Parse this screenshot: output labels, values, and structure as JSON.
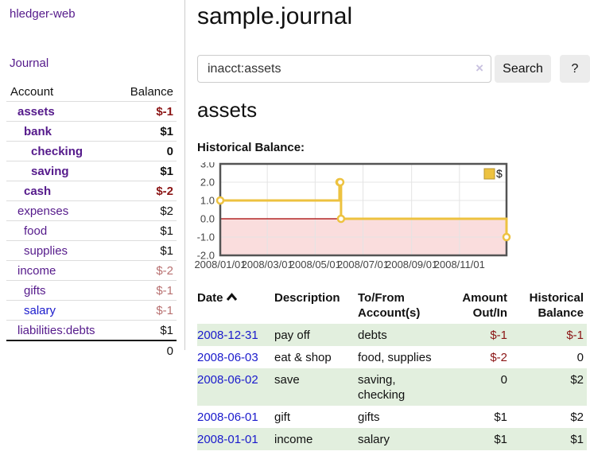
{
  "colors": {
    "link_purple": "#551a8b",
    "link_blue": "#1a1acc",
    "neg_strong": "#8b1515",
    "neg_soft": "#b87070",
    "row_green": "#e2efde",
    "button_bg": "#ececec",
    "divider": "#cccccc"
  },
  "app": {
    "brand": "hledger-web",
    "nav_journal": "Journal"
  },
  "sidebar": {
    "table": {
      "headers": {
        "account": "Account",
        "balance": "Balance"
      }
    },
    "accounts": [
      {
        "name": "assets",
        "depth": 1,
        "bold": true,
        "tone": "neg",
        "balance": "$-1"
      },
      {
        "name": "bank",
        "depth": 2,
        "bold": true,
        "tone": "pos",
        "balance": "$1"
      },
      {
        "name": "checking",
        "depth": 3,
        "bold": true,
        "tone": "pos",
        "balance": "0"
      },
      {
        "name": "saving",
        "depth": 3,
        "bold": true,
        "tone": "pos",
        "balance": "$1"
      },
      {
        "name": "cash",
        "depth": 2,
        "bold": true,
        "tone": "neg",
        "balance": "$-2"
      },
      {
        "name": "expenses",
        "depth": 1,
        "bold": false,
        "tone": "pos",
        "balance": "$2"
      },
      {
        "name": "food",
        "depth": 2,
        "bold": false,
        "tone": "pos",
        "balance": "$1"
      },
      {
        "name": "supplies",
        "depth": 2,
        "bold": false,
        "tone": "pos",
        "balance": "$1"
      },
      {
        "name": "income",
        "depth": 1,
        "bold": false,
        "tone": "neg",
        "balance": "$-2"
      },
      {
        "name": "gifts",
        "depth": 2,
        "bold": false,
        "tone": "neg",
        "balance": "$-1"
      },
      {
        "name": "salary",
        "depth": 2,
        "bold": false,
        "tone": "neg",
        "balance": "$-1",
        "link_style": "unvisited"
      },
      {
        "name": "liabilities:debts",
        "depth": 1,
        "bold": false,
        "tone": "pos",
        "balance": "$1"
      }
    ],
    "total": "0"
  },
  "main": {
    "title": "sample.journal",
    "search": {
      "value": "inacct:assets",
      "clear_icon": "×",
      "button": "Search",
      "help_button": "?"
    },
    "account_heading": "assets",
    "chart_label": "Historical Balance:",
    "register": {
      "headers": {
        "date": "Date",
        "description": "Description",
        "accounts": "To/From\nAccount(s)",
        "amount": "Amount\nOut/In",
        "balance": "Historical\nBalance"
      },
      "rows": [
        {
          "date": "2008-12-31",
          "description": "pay off",
          "accounts": "debts",
          "amount": "$-1",
          "amount_neg": true,
          "balance": "$-1",
          "balance_neg": true,
          "shaded": true
        },
        {
          "date": "2008-06-03",
          "description": "eat & shop",
          "accounts": "food, supplies",
          "amount": "$-2",
          "amount_neg": true,
          "balance": "0",
          "balance_neg": false,
          "shaded": false
        },
        {
          "date": "2008-06-02",
          "description": "save",
          "accounts": "saving,\nchecking",
          "amount": "0",
          "amount_neg": false,
          "balance": "$2",
          "balance_neg": false,
          "shaded": true
        },
        {
          "date": "2008-06-01",
          "description": "gift",
          "accounts": "gifts",
          "amount": "$1",
          "amount_neg": false,
          "balance": "$2",
          "balance_neg": false,
          "shaded": false
        },
        {
          "date": "2008-01-01",
          "description": "income",
          "accounts": "salary",
          "amount": "$1",
          "amount_neg": false,
          "balance": "$1",
          "balance_neg": false,
          "shaded": true
        }
      ]
    }
  },
  "chart_data": {
    "type": "line",
    "title": "Historical Balance",
    "step": true,
    "series": [
      {
        "name": "$",
        "points": [
          [
            "2008-01-01",
            1
          ],
          [
            "2008-06-01",
            2
          ],
          [
            "2008-06-02",
            2
          ],
          [
            "2008-06-03",
            0
          ],
          [
            "2008-12-31",
            -1
          ]
        ]
      }
    ],
    "xlim": [
      "2008-01-01",
      "2008-12-31"
    ],
    "ylim": [
      -2,
      3
    ],
    "y_ticks": [
      3.0,
      2.0,
      1.0,
      0.0,
      -1.0,
      -2.0
    ],
    "x_ticks": [
      {
        "date": "2008-01-01",
        "label": "2008/01/01"
      },
      {
        "date": "2008-03-01",
        "label": "2008/03/01"
      },
      {
        "date": "2008-05-01",
        "label": "2008/05/01"
      },
      {
        "date": "2008-07-01",
        "label": "2008/07/01"
      },
      {
        "date": "2008-09-01",
        "label": "2008/09/01"
      },
      {
        "date": "2008-11-01",
        "label": "2008/11/01"
      }
    ],
    "grid": true,
    "legend": {
      "label": "$",
      "position": "top-right"
    },
    "line_color": "#edc240",
    "marker_fill": "#ffffff",
    "below_zero_fill": "#fadddd",
    "zero_line_color": "#a40000",
    "border_color": "#545454",
    "grid_color": "#e4e4e4"
  }
}
